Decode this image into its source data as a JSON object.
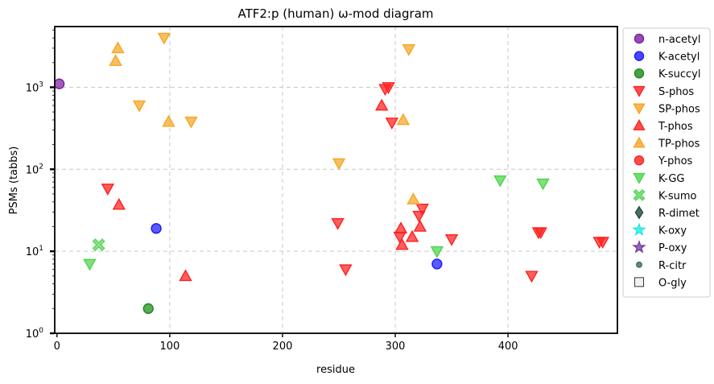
{
  "chart_data": {
    "type": "scatter",
    "title": "ATF2:p (human) ω-mod diagram",
    "xlabel": "residue",
    "ylabel": "PSMs (tabbs)",
    "xlim": [
      -2,
      497
    ],
    "x_ticks": [
      0,
      100,
      200,
      300,
      400
    ],
    "y_scale": "log",
    "ylim": [
      1,
      5500
    ],
    "y_ticks": [
      {
        "value": 1,
        "base": "10",
        "exp": "0"
      },
      {
        "value": 10,
        "base": "10",
        "exp": "1"
      },
      {
        "value": 100,
        "base": "10",
        "exp": "2"
      },
      {
        "value": 1000,
        "base": "10",
        "exp": "3"
      }
    ],
    "grid": true,
    "legend_position": "outside-right",
    "series": [
      {
        "name": "n-acetyl",
        "marker": "circle",
        "color": "#7b1fa2",
        "points": [
          [
            2,
            1100
          ]
        ]
      },
      {
        "name": "K-acetyl",
        "marker": "circle",
        "color": "#1a1aff",
        "points": [
          [
            88,
            19
          ],
          [
            337,
            7
          ]
        ]
      },
      {
        "name": "K-succyl",
        "marker": "circle",
        "color": "#1b8a1b",
        "points": [
          [
            81,
            2
          ]
        ]
      },
      {
        "name": "S-phos",
        "marker": "triangle-down",
        "color": "#ff2020",
        "points": [
          [
            45,
            58
          ],
          [
            249,
            22
          ],
          [
            256,
            6
          ],
          [
            291,
            950
          ],
          [
            294,
            1000
          ],
          [
            297,
            370
          ],
          [
            304,
            15
          ],
          [
            321,
            27
          ],
          [
            324,
            33
          ],
          [
            350,
            14
          ],
          [
            421,
            5
          ],
          [
            427,
            17
          ],
          [
            429,
            17
          ],
          [
            481,
            13
          ],
          [
            484,
            13
          ]
        ]
      },
      {
        "name": "SP-phos",
        "marker": "triangle-down",
        "color": "#f5a623",
        "points": [
          [
            73,
            600
          ],
          [
            95,
            4000
          ],
          [
            119,
            380
          ],
          [
            250,
            118
          ],
          [
            312,
            2900
          ]
        ]
      },
      {
        "name": "T-phos",
        "marker": "triangle-up",
        "color": "#ff2020",
        "points": [
          [
            55,
            37
          ],
          [
            114,
            5
          ],
          [
            288,
            600
          ],
          [
            305,
            19
          ],
          [
            306,
            12
          ],
          [
            315,
            15
          ],
          [
            322,
            20
          ]
        ]
      },
      {
        "name": "TP-phos",
        "marker": "triangle-up",
        "color": "#f5a623",
        "points": [
          [
            52,
            2100
          ],
          [
            54,
            3000
          ],
          [
            99,
            380
          ],
          [
            307,
            400
          ],
          [
            316,
            43
          ]
        ]
      },
      {
        "name": "Y-phos",
        "marker": "circle",
        "color": "#ff2020",
        "points": []
      },
      {
        "name": "K-GG",
        "marker": "triangle-down",
        "color": "#4cd44c",
        "points": [
          [
            29,
            7
          ],
          [
            337,
            10
          ],
          [
            393,
            73
          ],
          [
            431,
            67
          ]
        ]
      },
      {
        "name": "K-sumo",
        "marker": "x",
        "color": "#5cd65c",
        "points": [
          [
            37,
            12
          ]
        ]
      },
      {
        "name": "R-dimet",
        "marker": "diamond",
        "color": "#1f4d3a",
        "points": []
      },
      {
        "name": "K-oxy",
        "marker": "star",
        "color": "#22e8e8",
        "points": []
      },
      {
        "name": "P-oxy",
        "marker": "star",
        "color": "#7b3fa0",
        "points": []
      },
      {
        "name": "R-citr",
        "marker": "small-circle",
        "color": "#3d6e5a",
        "points": []
      },
      {
        "name": "O-gly",
        "marker": "square",
        "color": "#eeeeee",
        "points": []
      }
    ]
  }
}
